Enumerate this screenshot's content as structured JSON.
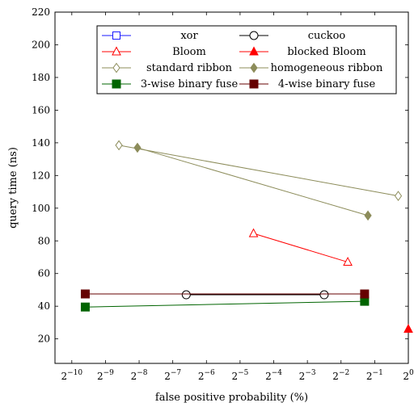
{
  "chart_data": {
    "type": "line",
    "xlabel": "false positive probability (%)",
    "ylabel": "query time (ns)",
    "x_scale": "log2",
    "xlim_exponent": [
      -10.5,
      0
    ],
    "ylim": [
      5,
      220
    ],
    "x_ticks": [
      {
        "exp": -10,
        "label": "2",
        "sup": "−10"
      },
      {
        "exp": -9,
        "label": "2",
        "sup": "−9"
      },
      {
        "exp": -8,
        "label": "2",
        "sup": "−8"
      },
      {
        "exp": -7,
        "label": "2",
        "sup": "−7"
      },
      {
        "exp": -6,
        "label": "2",
        "sup": "−6"
      },
      {
        "exp": -5,
        "label": "2",
        "sup": "−5"
      },
      {
        "exp": -4,
        "label": "2",
        "sup": "−4"
      },
      {
        "exp": -3,
        "label": "2",
        "sup": "−3"
      },
      {
        "exp": -2,
        "label": "2",
        "sup": "−2"
      },
      {
        "exp": -1,
        "label": "2",
        "sup": "−1"
      },
      {
        "exp": 0,
        "label": "2",
        "sup": "0"
      }
    ],
    "y_ticks": [
      20,
      40,
      60,
      80,
      100,
      120,
      140,
      160,
      180,
      200,
      220
    ],
    "grid": false,
    "legend_position": "top",
    "series": [
      {
        "name": "xor",
        "color": "#1a1aff",
        "marker": "square-open",
        "points": []
      },
      {
        "name": "cuckoo",
        "color": "#000000",
        "marker": "circle-open",
        "points": [
          [
            -6.6,
            47
          ],
          [
            -2.5,
            47
          ]
        ]
      },
      {
        "name": "Bloom",
        "color": "#ff0000",
        "marker": "triangle-open",
        "points": [
          [
            -4.6,
            84.5
          ],
          [
            -1.8,
            67
          ]
        ]
      },
      {
        "name": "blocked Bloom",
        "color": "#ff0000",
        "marker": "triangle-filled",
        "points": [
          [
            -0.0,
            26
          ]
        ]
      },
      {
        "name": "standard ribbon",
        "color": "#8c8c5a",
        "marker": "diamond-open",
        "points": [
          [
            -8.6,
            138.5
          ],
          [
            -0.3,
            107.5
          ]
        ]
      },
      {
        "name": "homogeneous ribbon",
        "color": "#8c8c5a",
        "marker": "diamond-filled",
        "points": [
          [
            -8.05,
            137
          ],
          [
            -1.2,
            95.5
          ]
        ]
      },
      {
        "name": "3-wise binary fuse",
        "color": "#006400",
        "marker": "square-filled",
        "points": [
          [
            -9.6,
            39.5
          ],
          [
            -1.3,
            43
          ]
        ]
      },
      {
        "name": "4-wise binary fuse",
        "color": "#660000",
        "marker": "square-filled",
        "points": [
          [
            -9.6,
            47.5
          ],
          [
            -1.3,
            47.5
          ]
        ]
      }
    ]
  }
}
